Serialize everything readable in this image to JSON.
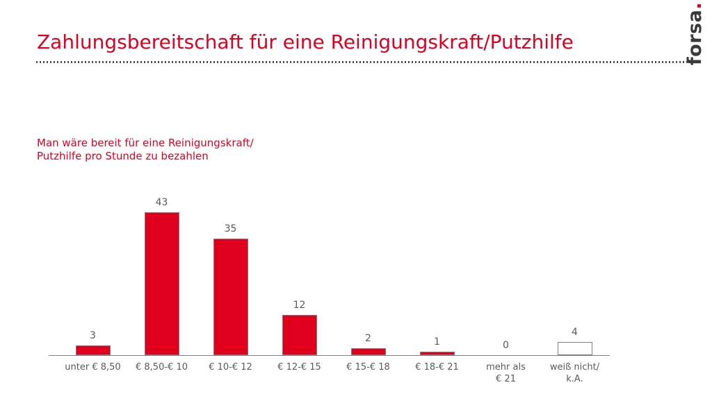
{
  "header": {
    "title": "Zahlungsbereitschaft für eine Reinigungskraft/Putzhilfe",
    "logo_text": "forsa",
    "logo_dot": "."
  },
  "colors": {
    "accent-red": "#e0001e",
    "label-gray": "#595959",
    "axis-gray": "#7f7f7f",
    "logo-dark": "#3a3a39",
    "dot-gray": "#4a4a4a"
  },
  "chart_data": {
    "type": "bar",
    "title": "Man wäre bereit für eine Reinigungskraft/\nPutzhilfe pro Stunde zu bezahlen",
    "categories": [
      "unter € 8,50",
      "€ 8,50-€ 10",
      "€ 10-€ 12",
      "€ 12-€ 15",
      "€ 15-€ 18",
      "€ 18-€ 21",
      "mehr als\n€ 21",
      "weiß nicht/\nk.A."
    ],
    "values": [
      3,
      43,
      35,
      12,
      2,
      1,
      0,
      4
    ],
    "bar_styles": [
      "filled",
      "filled",
      "filled",
      "filled",
      "filled",
      "filled",
      "filled",
      "outline"
    ],
    "value_labels": [
      3,
      43,
      35,
      12,
      2,
      1,
      0,
      4
    ],
    "xlabel": "",
    "ylabel": "",
    "ylim": [
      0,
      45
    ],
    "grid": false,
    "legend": false,
    "y_axis_visible": false,
    "value_labels_position": "above-bar"
  }
}
